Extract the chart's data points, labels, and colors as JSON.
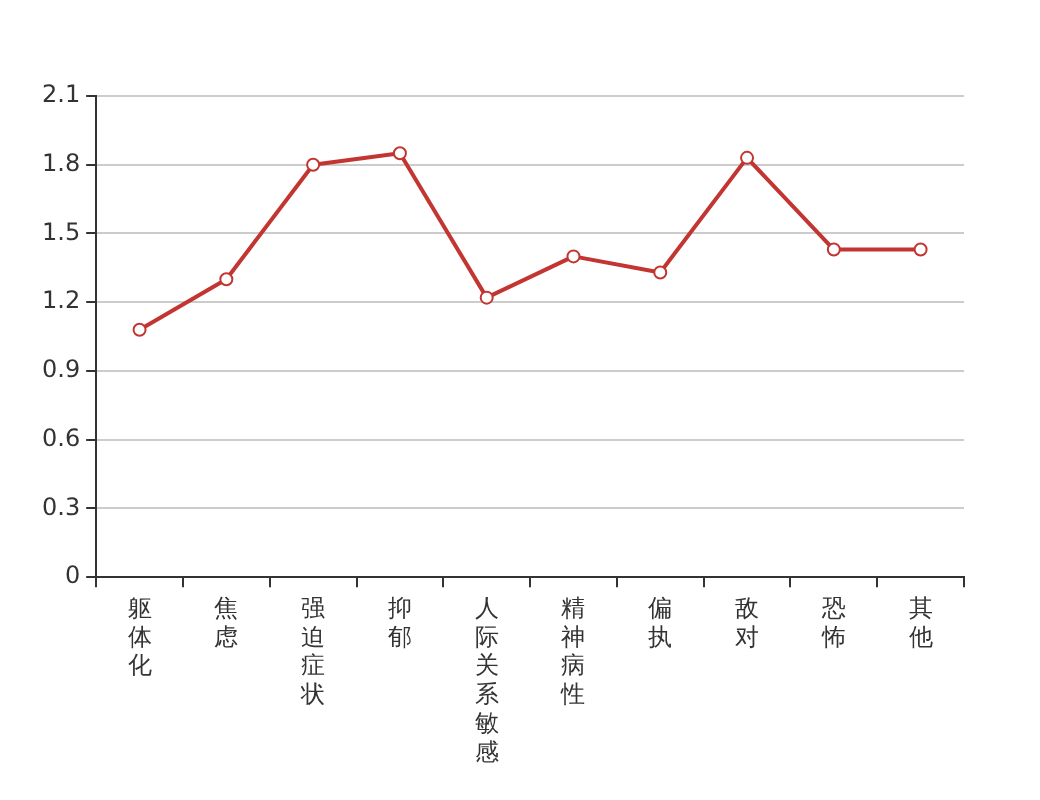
{
  "chart_data": {
    "type": "line",
    "categories": [
      "躯体化",
      "焦虑",
      "强迫症状",
      "抑郁",
      "人际关系敏感",
      "精神病性",
      "偏执",
      "敌对",
      "恐怖",
      "其他"
    ],
    "values": [
      1.08,
      1.3,
      1.8,
      1.85,
      1.22,
      1.4,
      1.33,
      1.83,
      1.43,
      1.43
    ],
    "color": "#c23531",
    "ylim": [
      0,
      2.1
    ],
    "yticks": [
      0,
      0.3,
      0.6,
      0.9,
      1.2,
      1.5,
      1.8,
      2.1
    ],
    "grid": "y",
    "marker": "circle",
    "line_style": "solid"
  }
}
